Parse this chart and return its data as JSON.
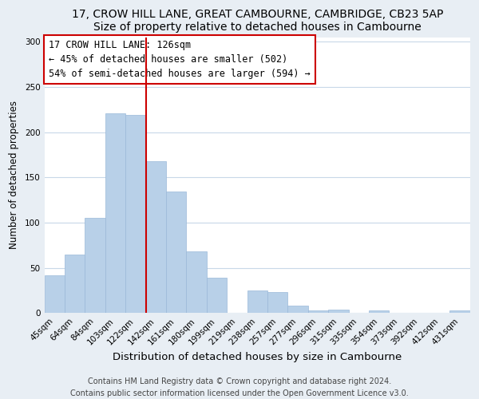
{
  "title1": "17, CROW HILL LANE, GREAT CAMBOURNE, CAMBRIDGE, CB23 5AP",
  "title2": "Size of property relative to detached houses in Cambourne",
  "xlabel": "Distribution of detached houses by size in Cambourne",
  "ylabel": "Number of detached properties",
  "categories": [
    "45sqm",
    "64sqm",
    "84sqm",
    "103sqm",
    "122sqm",
    "142sqm",
    "161sqm",
    "180sqm",
    "199sqm",
    "219sqm",
    "238sqm",
    "257sqm",
    "277sqm",
    "296sqm",
    "315sqm",
    "335sqm",
    "354sqm",
    "373sqm",
    "392sqm",
    "412sqm",
    "431sqm"
  ],
  "values": [
    42,
    65,
    105,
    221,
    219,
    168,
    134,
    68,
    39,
    0,
    25,
    23,
    8,
    3,
    4,
    0,
    3,
    0,
    0,
    0,
    3
  ],
  "bar_color": "#b8d0e8",
  "bar_edge_color": "#9ab8d8",
  "vline_color": "#cc0000",
  "vline_position": 4.5,
  "annotation_title": "17 CROW HILL LANE: 126sqm",
  "annotation_line1": "← 45% of detached houses are smaller (502)",
  "annotation_line2": "54% of semi-detached houses are larger (594) →",
  "annotation_box_color": "#ffffff",
  "annotation_box_edge": "#cc0000",
  "ylim": [
    0,
    305
  ],
  "yticks": [
    0,
    50,
    100,
    150,
    200,
    250,
    300
  ],
  "footnote1": "Contains HM Land Registry data © Crown copyright and database right 2024.",
  "footnote2": "Contains public sector information licensed under the Open Government Licence v3.0.",
  "fig_background_color": "#e8eef4",
  "plot_background_color": "#ffffff",
  "grid_color": "#c8d8e8",
  "title_fontsize": 10,
  "xlabel_fontsize": 9.5,
  "ylabel_fontsize": 8.5,
  "tick_fontsize": 7.5,
  "annotation_fontsize": 8.5,
  "footnote_fontsize": 7
}
